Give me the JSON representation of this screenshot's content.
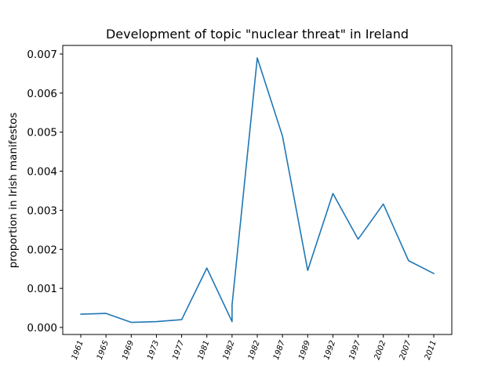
{
  "chart_data": {
    "type": "line",
    "title": "Development of topic \"nuclear threat\" in Ireland",
    "xlabel": "",
    "ylabel": "proportion in Irish manifestos",
    "categories": [
      "1961",
      "1965",
      "1969",
      "1973",
      "1977",
      "1981",
      "1982",
      "1982",
      "1987",
      "1989",
      "1992",
      "1997",
      "2002",
      "2007",
      "2011"
    ],
    "values": [
      0.00034,
      0.00036,
      0.00013,
      0.00015,
      0.0002,
      0.00152,
      0.00015,
      0.0069,
      0.0049,
      0.00146,
      0.00343,
      0.00226,
      0.00316,
      0.00171,
      0.00138
    ],
    "extra_points": [
      {
        "after_index": 6,
        "x_index": 6,
        "y": 0.00058
      }
    ],
    "ylim": [
      -0.00018,
      0.00722
    ],
    "yticks": [
      0.0,
      0.001,
      0.002,
      0.003,
      0.004,
      0.005,
      0.006,
      0.007
    ],
    "ytick_labels": [
      "0.000",
      "0.001",
      "0.002",
      "0.003",
      "0.004",
      "0.005",
      "0.006",
      "0.007"
    ],
    "grid": false,
    "legend": "none",
    "colors": {
      "line": "#1f77b4"
    }
  }
}
